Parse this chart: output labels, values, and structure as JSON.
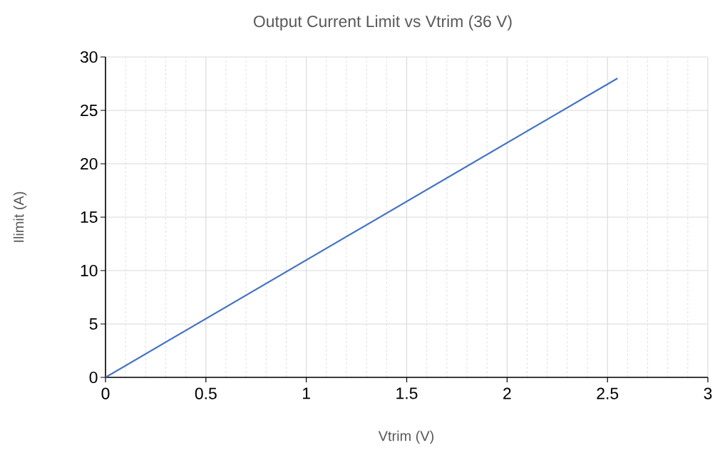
{
  "chart_data": {
    "type": "line",
    "title": "Output Current Limit vs Vtrim (36 V)",
    "xlabel": "Vtrim (V)",
    "ylabel": "Ilimit (A)",
    "x": [
      0,
      2.55
    ],
    "series": [
      {
        "color": "#4472c4",
        "values": [
          0,
          28
        ]
      }
    ],
    "xlim": [
      0,
      3
    ],
    "ylim": [
      0,
      30
    ],
    "xticks": [
      0,
      0.5,
      1,
      1.5,
      2,
      2.5,
      3
    ],
    "yticks": [
      0,
      5,
      10,
      15,
      20,
      25,
      30
    ],
    "grid": true,
    "marker": "none",
    "line_style": "solid"
  }
}
